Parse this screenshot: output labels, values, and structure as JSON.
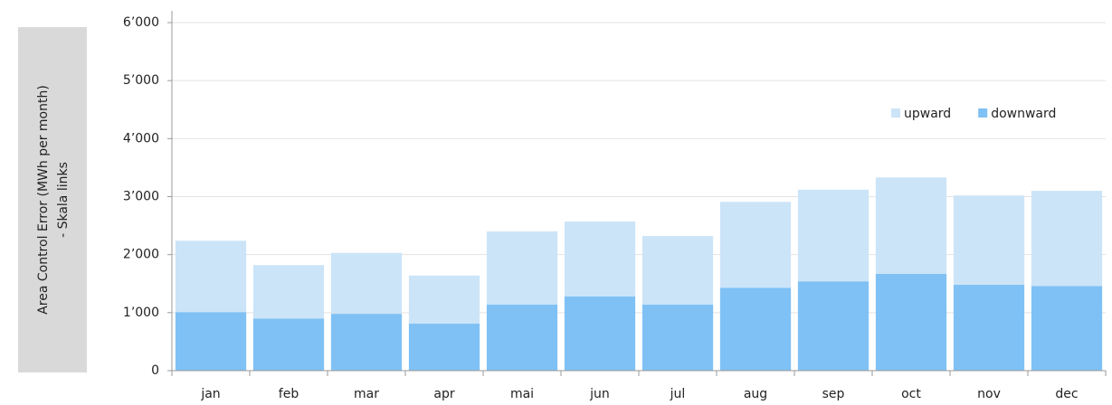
{
  "chart_data": {
    "type": "stacked_bar",
    "y_label": [
      "Area Control Error (MWh per month)",
      "- Skala links"
    ],
    "categories": [
      "jan",
      "feb",
      "mar",
      "apr",
      "mai",
      "jun",
      "jul",
      "aug",
      "sep",
      "oct",
      "nov",
      "dec"
    ],
    "series": [
      {
        "name": "upward",
        "color": "#cce4f8",
        "values": [
          1230,
          920,
          1050,
          830,
          1260,
          1290,
          1180,
          1480,
          1580,
          1660,
          1540,
          1640
        ]
      },
      {
        "name": "downward",
        "color": "#7fc1f5",
        "values": [
          1010,
          900,
          980,
          810,
          1140,
          1280,
          1140,
          1430,
          1540,
          1670,
          1480,
          1460
        ]
      }
    ],
    "ylim": [
      0,
      6000
    ],
    "yticks": [
      0,
      {
        "value": 1000,
        "label": "1’000"
      },
      {
        "value": 2000,
        "label": "2’000"
      },
      {
        "value": 3000,
        "label": "3’000"
      },
      {
        "value": 4000,
        "label": "4’000"
      },
      {
        "value": 5000,
        "label": "5’000"
      },
      {
        "value": 6000,
        "label": "6’000"
      }
    ],
    "grid": true,
    "legend": "upper right"
  }
}
